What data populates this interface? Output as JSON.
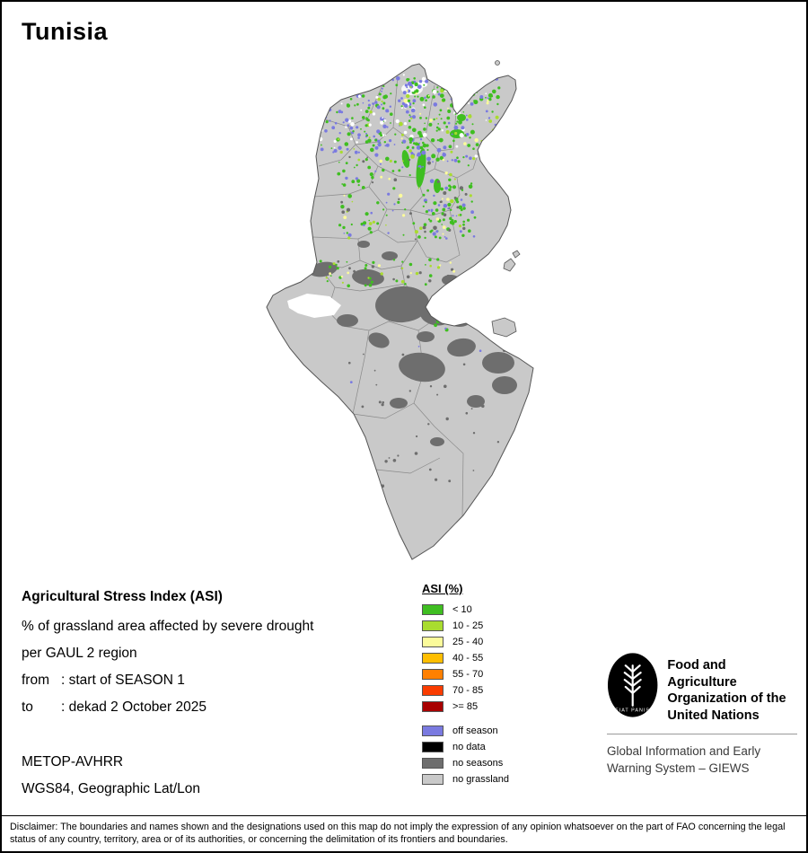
{
  "title": "Tunisia",
  "info": {
    "heading": "Agricultural Stress Index (ASI)",
    "line1": "% of grassland area affected by severe drought",
    "line2": "per GAUL 2 region",
    "from_label": "from",
    "from_value": ": start of SEASON 1",
    "to_label": "to",
    "to_value": ": dekad 2 October 2025",
    "sensor": "METOP-AVHRR",
    "projection": "WGS84, Geographic Lat/Lon"
  },
  "legend": {
    "title": "ASI (%)",
    "classes": [
      {
        "label": "< 10",
        "color": "#3FBE21"
      },
      {
        "label": "10 - 25",
        "color": "#A9DC2F"
      },
      {
        "label": "25 - 40",
        "color": "#FBFB9B"
      },
      {
        "label": "40 - 55",
        "color": "#FFBE00"
      },
      {
        "label": "55 - 70",
        "color": "#FF8000"
      },
      {
        "label": "70 - 85",
        "color": "#FA3C00"
      },
      {
        "label": ">= 85",
        "color": "#A80000"
      }
    ],
    "extra": [
      {
        "label": "off season",
        "color": "#7A7AE0"
      },
      {
        "label": "no data",
        "color": "#000000"
      },
      {
        "label": "no seasons",
        "color": "#6E6E6E"
      },
      {
        "label": "no grassland",
        "color": "#C9C9C9"
      }
    ]
  },
  "footer": {
    "fao_name_lines": [
      "Food and Agriculture",
      "Organization of the",
      "United Nations"
    ],
    "fao_motto": "FIAT PANIS",
    "giews_lines": [
      "Global Information and Early",
      "Warning System – GIEWS"
    ],
    "disclaimer": "Disclaimer: The boundaries and names shown and the designations used on this map do not imply the expression of any opinion whatsoever on the part of FAO concerning the legal status of any country, territory, area or of its authorities, or concerning the delimitation of its frontiers and boundaries."
  }
}
